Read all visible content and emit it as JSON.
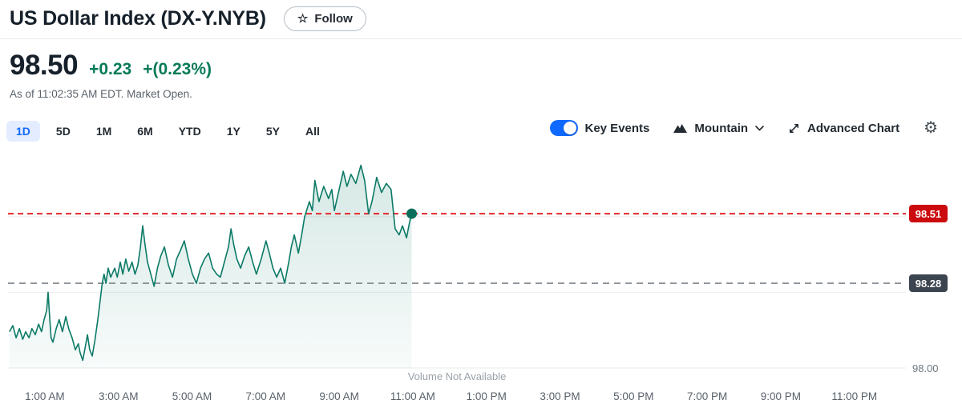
{
  "header": {
    "title": "US Dollar Index (DX-Y.NYB)",
    "follow_label": "Follow",
    "star_icon": "☆"
  },
  "quote": {
    "price": "98.50",
    "change": "+0.23",
    "change_percent": "+(0.23%)",
    "as_of": "As of 11:02:35 AM EDT. Market Open.",
    "positive_color": "#077a57"
  },
  "toolbar": {
    "ranges": [
      {
        "label": "1D",
        "active": true
      },
      {
        "label": "5D",
        "active": false
      },
      {
        "label": "1M",
        "active": false
      },
      {
        "label": "6M",
        "active": false
      },
      {
        "label": "YTD",
        "active": false
      },
      {
        "label": "1Y",
        "active": false
      },
      {
        "label": "5Y",
        "active": false
      },
      {
        "label": "All",
        "active": false
      }
    ],
    "key_events": {
      "label": "Key Events",
      "toggle_on": true,
      "toggle_color": "#0f69ff"
    },
    "chart_type": {
      "label": "Mountain"
    },
    "advanced_chart": {
      "label": "Advanced Chart"
    }
  },
  "chart_data": {
    "type": "area",
    "title": "US Dollar Index (DX-Y.NYB) 1D intraday",
    "x_unit_hours_from_midnight": true,
    "x_range": [
      0,
      24.4
    ],
    "y_range": [
      98.0,
      98.7
    ],
    "grid": true,
    "y_gridlines": [
      98.0,
      98.25,
      98.5
    ],
    "y_axis_visible_label": "98.00",
    "x_ticks": [
      {
        "h": 1,
        "label": "1:00 AM"
      },
      {
        "h": 3,
        "label": "3:00 AM"
      },
      {
        "h": 5,
        "label": "5:00 AM"
      },
      {
        "h": 7,
        "label": "7:00 AM"
      },
      {
        "h": 9,
        "label": "9:00 AM"
      },
      {
        "h": 11,
        "label": "11:00 AM"
      },
      {
        "h": 13,
        "label": "1:00 PM"
      },
      {
        "h": 15,
        "label": "3:00 PM"
      },
      {
        "h": 17,
        "label": "5:00 PM"
      },
      {
        "h": 19,
        "label": "7:00 PM"
      },
      {
        "h": 21,
        "label": "9:00 PM"
      },
      {
        "h": 23,
        "label": "11:00 PM"
      }
    ],
    "markers": {
      "current": {
        "value": 98.51,
        "label": "98.51",
        "badge_color": "#cc0b0e",
        "line_color": "#e3262a",
        "style": "dashed"
      },
      "previous_close": {
        "value": 98.28,
        "label": "98.28",
        "badge_color": "#3c4450",
        "line_color": "#7d848b",
        "style": "dashed"
      }
    },
    "volume_note": "Volume Not Available",
    "series": [
      {
        "name": "DX-Y.NYB",
        "line_color": "#0b7a66",
        "fill_color": "#0b7a66",
        "last_point": {
          "h": 10.97,
          "price": 98.51
        },
        "points": [
          [
            0.04,
            98.12
          ],
          [
            0.13,
            98.14
          ],
          [
            0.22,
            98.1
          ],
          [
            0.31,
            98.13
          ],
          [
            0.4,
            98.095
          ],
          [
            0.48,
            98.12
          ],
          [
            0.57,
            98.1
          ],
          [
            0.65,
            98.13
          ],
          [
            0.74,
            98.11
          ],
          [
            0.83,
            98.145
          ],
          [
            0.91,
            98.12
          ],
          [
            0.98,
            98.16
          ],
          [
            1.05,
            98.19
          ],
          [
            1.09,
            98.25
          ],
          [
            1.13,
            98.17
          ],
          [
            1.17,
            98.1
          ],
          [
            1.22,
            98.085
          ],
          [
            1.31,
            98.13
          ],
          [
            1.39,
            98.16
          ],
          [
            1.48,
            98.12
          ],
          [
            1.57,
            98.17
          ],
          [
            1.65,
            98.13
          ],
          [
            1.74,
            98.1
          ],
          [
            1.83,
            98.06
          ],
          [
            1.91,
            98.08
          ],
          [
            1.96,
            98.05
          ],
          [
            2.03,
            98.025
          ],
          [
            2.1,
            98.07
          ],
          [
            2.16,
            98.11
          ],
          [
            2.22,
            98.06
          ],
          [
            2.29,
            98.04
          ],
          [
            2.36,
            98.09
          ],
          [
            2.44,
            98.16
          ],
          [
            2.5,
            98.22
          ],
          [
            2.56,
            98.28
          ],
          [
            2.61,
            98.31
          ],
          [
            2.66,
            98.28
          ],
          [
            2.72,
            98.33
          ],
          [
            2.79,
            98.3
          ],
          [
            2.9,
            98.33
          ],
          [
            2.97,
            98.3
          ],
          [
            3.05,
            98.35
          ],
          [
            3.12,
            98.31
          ],
          [
            3.2,
            98.36
          ],
          [
            3.28,
            98.32
          ],
          [
            3.37,
            98.35
          ],
          [
            3.45,
            98.31
          ],
          [
            3.53,
            98.34
          ],
          [
            3.6,
            98.4
          ],
          [
            3.66,
            98.47
          ],
          [
            3.72,
            98.41
          ],
          [
            3.79,
            98.35
          ],
          [
            3.88,
            98.31
          ],
          [
            3.97,
            98.27
          ],
          [
            4.06,
            98.33
          ],
          [
            4.15,
            98.37
          ],
          [
            4.25,
            98.4
          ],
          [
            4.36,
            98.34
          ],
          [
            4.47,
            98.3
          ],
          [
            4.58,
            98.36
          ],
          [
            4.69,
            98.39
          ],
          [
            4.79,
            98.42
          ],
          [
            4.9,
            98.36
          ],
          [
            5.01,
            98.31
          ],
          [
            5.12,
            98.28
          ],
          [
            5.23,
            98.33
          ],
          [
            5.34,
            98.36
          ],
          [
            5.45,
            98.38
          ],
          [
            5.56,
            98.33
          ],
          [
            5.67,
            98.31
          ],
          [
            5.77,
            98.3
          ],
          [
            5.88,
            98.35
          ],
          [
            5.99,
            98.4
          ],
          [
            6.06,
            98.46
          ],
          [
            6.13,
            98.41
          ],
          [
            6.22,
            98.36
          ],
          [
            6.32,
            98.33
          ],
          [
            6.43,
            98.37
          ],
          [
            6.54,
            98.4
          ],
          [
            6.65,
            98.35
          ],
          [
            6.75,
            98.31
          ],
          [
            6.88,
            98.36
          ],
          [
            7.01,
            98.42
          ],
          [
            7.1,
            98.38
          ],
          [
            7.2,
            98.33
          ],
          [
            7.3,
            98.3
          ],
          [
            7.41,
            98.33
          ],
          [
            7.52,
            98.28
          ],
          [
            7.63,
            98.35
          ],
          [
            7.7,
            98.4
          ],
          [
            7.78,
            98.44
          ],
          [
            7.89,
            98.38
          ],
          [
            7.98,
            98.44
          ],
          [
            8.06,
            98.5
          ],
          [
            8.19,
            98.55
          ],
          [
            8.27,
            98.52
          ],
          [
            8.34,
            98.62
          ],
          [
            8.45,
            98.55
          ],
          [
            8.58,
            98.6
          ],
          [
            8.71,
            98.56
          ],
          [
            8.8,
            98.59
          ],
          [
            8.87,
            98.52
          ],
          [
            8.98,
            98.58
          ],
          [
            9.11,
            98.65
          ],
          [
            9.21,
            98.6
          ],
          [
            9.32,
            98.64
          ],
          [
            9.45,
            98.61
          ],
          [
            9.59,
            98.67
          ],
          [
            9.69,
            98.62
          ],
          [
            9.8,
            98.51
          ],
          [
            9.89,
            98.55
          ],
          [
            10.02,
            98.63
          ],
          [
            10.15,
            98.58
          ],
          [
            10.28,
            98.61
          ],
          [
            10.41,
            98.59
          ],
          [
            10.52,
            98.46
          ],
          [
            10.63,
            98.44
          ],
          [
            10.72,
            98.47
          ],
          [
            10.83,
            98.43
          ],
          [
            10.91,
            98.48
          ],
          [
            10.97,
            98.51
          ]
        ]
      }
    ]
  }
}
